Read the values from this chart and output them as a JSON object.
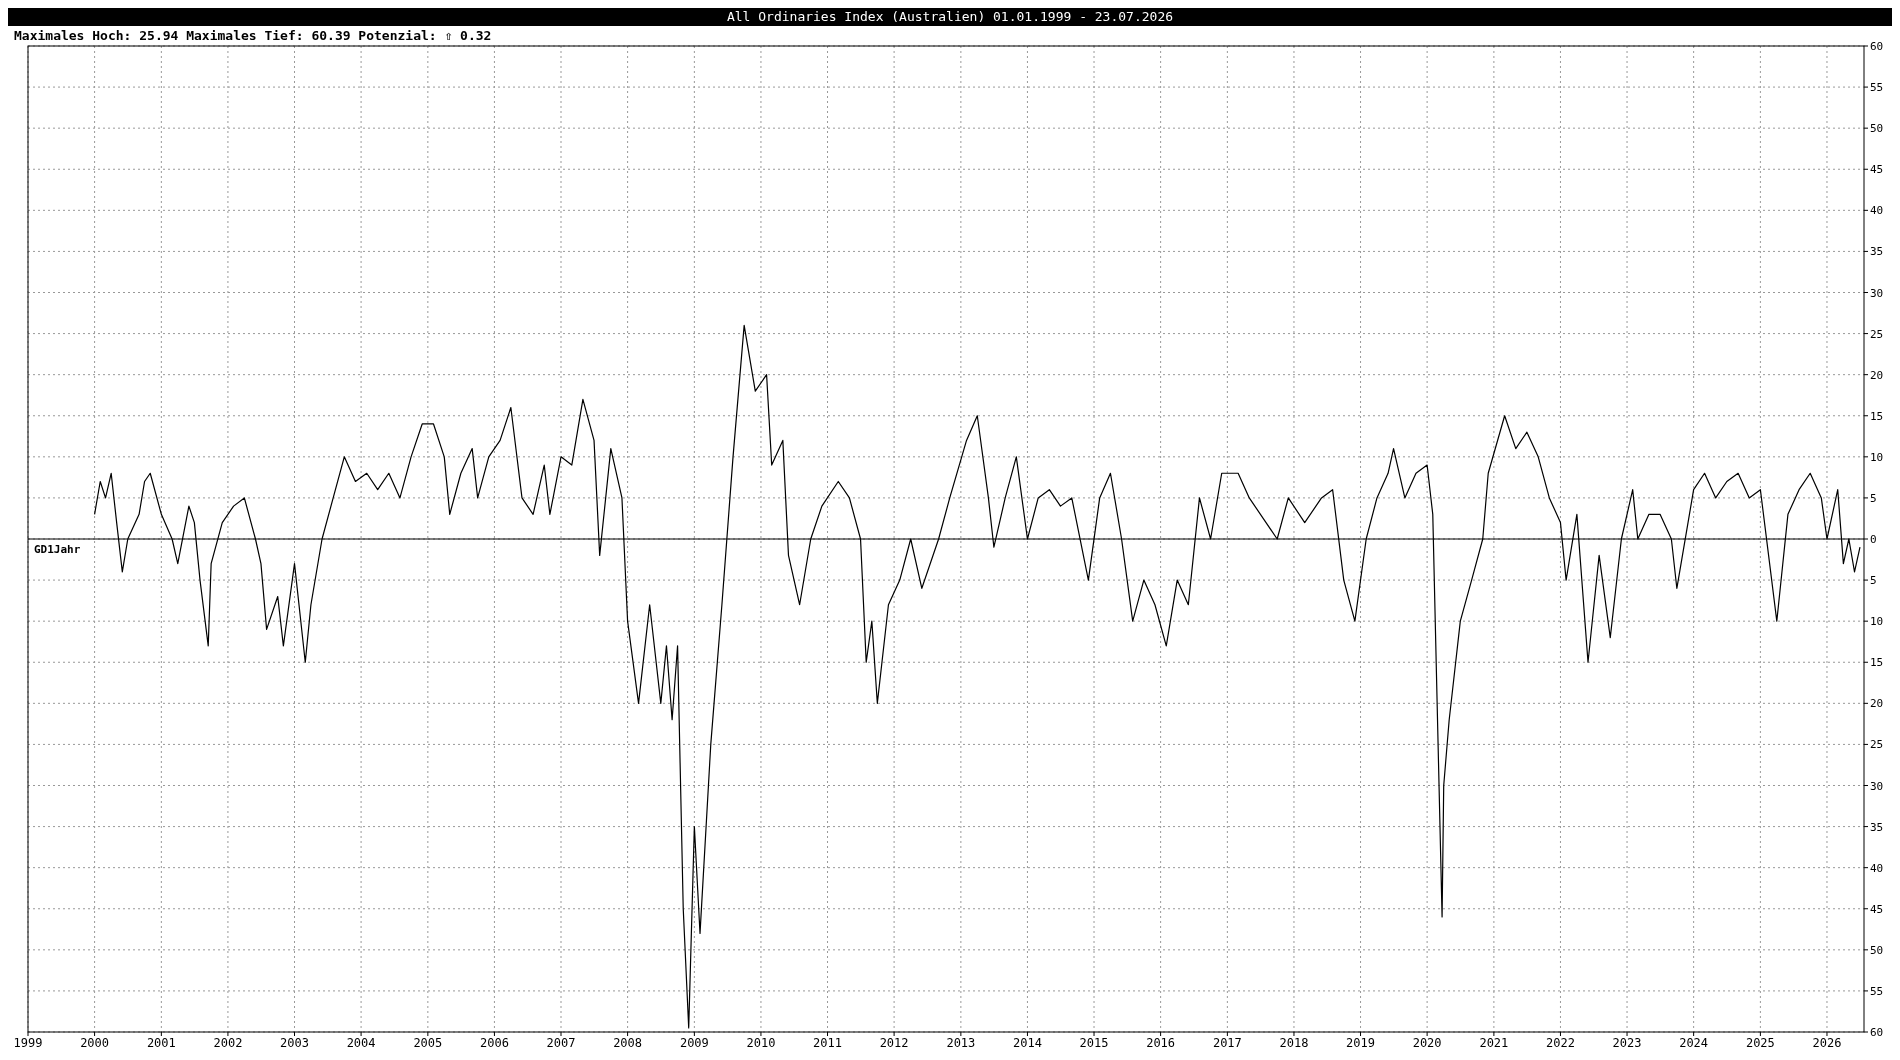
{
  "chart_data": {
    "type": "line",
    "title": "All Ordinaries Index (Australien) 01.01.1999 - 23.07.2026",
    "subtitle": "Maximales Hoch: 25.94  Maximales Tief: 60.39  Potenzial: ⇧ 0.32",
    "xlim": [
      "1999-01-01",
      "2026-07-23"
    ],
    "xticks": [
      "1999",
      "2000",
      "2001",
      "2002",
      "2003",
      "2004",
      "2005",
      "2006",
      "2007",
      "2008",
      "2009",
      "2010",
      "2011",
      "2012",
      "2013",
      "2014",
      "2015",
      "2016",
      "2017",
      "2018",
      "2019",
      "2020",
      "2021",
      "2022",
      "2023",
      "2024",
      "2025",
      "2026"
    ],
    "ylim": [
      -60,
      60
    ],
    "yticks": [
      {
        "value": -60,
        "label": "60"
      },
      {
        "value": -55,
        "label": "55"
      },
      {
        "value": -50,
        "label": "50"
      },
      {
        "value": -45,
        "label": "45"
      },
      {
        "value": -40,
        "label": "40"
      },
      {
        "value": -35,
        "label": "35"
      },
      {
        "value": -30,
        "label": "30"
      },
      {
        "value": -25,
        "label": "25"
      },
      {
        "value": -20,
        "label": "20"
      },
      {
        "value": -15,
        "label": "15"
      },
      {
        "value": -10,
        "label": "10"
      },
      {
        "value": -5,
        "label": "5"
      },
      0,
      5,
      10,
      15,
      20,
      25,
      30,
      35,
      40,
      45,
      50,
      55,
      60
    ],
    "grid": true,
    "ref_lines": [
      {
        "axis": "y",
        "value": 0,
        "label": "GD1Jahr",
        "color": "#000000"
      }
    ],
    "x": [
      "2000-01",
      "2000-02",
      "2000-03",
      "2000-04",
      "2000-05",
      "2000-06",
      "2000-07",
      "2000-09",
      "2000-10",
      "2000-11",
      "2001-01",
      "2001-03",
      "2001-04",
      "2001-06",
      "2001-07",
      "2001-08",
      "2001-09-15",
      "2001-10",
      "2001-12",
      "2002-02",
      "2002-04",
      "2002-06",
      "2002-07",
      "2002-08",
      "2002-10",
      "2002-11",
      "2003-01",
      "2003-03",
      "2003-04",
      "2003-06",
      "2003-08",
      "2003-10",
      "2003-12",
      "2004-02",
      "2004-04",
      "2004-06",
      "2004-08",
      "2004-10",
      "2004-12",
      "2005-02",
      "2005-04",
      "2005-05",
      "2005-07",
      "2005-09",
      "2005-10",
      "2005-12",
      "2006-02",
      "2006-04",
      "2006-06",
      "2006-08",
      "2006-10",
      "2006-11",
      "2007-01",
      "2007-03",
      "2007-05",
      "2007-07",
      "2007-08",
      "2007-10",
      "2007-12",
      "2008-01",
      "2008-03",
      "2008-05",
      "2008-07",
      "2008-08",
      "2008-09",
      "2008-10",
      "2008-11",
      "2008-12",
      "2009-01",
      "2009-02",
      "2009-04",
      "2009-06",
      "2009-08",
      "2009-10",
      "2009-12",
      "2010-02",
      "2010-03",
      "2010-05",
      "2010-06",
      "2010-08",
      "2010-10",
      "2010-12",
      "2011-03",
      "2011-05",
      "2011-07",
      "2011-08",
      "2011-09",
      "2011-10",
      "2011-12",
      "2012-02",
      "2012-04",
      "2012-06",
      "2012-09",
      "2012-11",
      "2013-02",
      "2013-04",
      "2013-06",
      "2013-07",
      "2013-09",
      "2013-11",
      "2014-01",
      "2014-03",
      "2014-05",
      "2014-07",
      "2014-09",
      "2014-12",
      "2015-02",
      "2015-04",
      "2015-06",
      "2015-08",
      "2015-10",
      "2015-12",
      "2016-02",
      "2016-04",
      "2016-06",
      "2016-08",
      "2016-10",
      "2016-12",
      "2017-03",
      "2017-05",
      "2017-08",
      "2017-10",
      "2017-12",
      "2018-03",
      "2018-06",
      "2018-08",
      "2018-10",
      "2018-12",
      "2019-02",
      "2019-04",
      "2019-06",
      "2019-07",
      "2019-09",
      "2019-11",
      "2020-01",
      "2020-02",
      "2020-03-23",
      "2020-04",
      "2020-05",
      "2020-07",
      "2020-09",
      "2020-11",
      "2020-12",
      "2021-03",
      "2021-05",
      "2021-07",
      "2021-09",
      "2021-11",
      "2022-01",
      "2022-02",
      "2022-04",
      "2022-06",
      "2022-08",
      "2022-10",
      "2022-12",
      "2023-02",
      "2023-03",
      "2023-05",
      "2023-07",
      "2023-09",
      "2023-10",
      "2024-01",
      "2024-03",
      "2024-05",
      "2024-07",
      "2024-09",
      "2024-11",
      "2025-01",
      "2025-04",
      "2025-06",
      "2025-08",
      "2025-10",
      "2025-12",
      "2026-01",
      "2026-03",
      "2026-04",
      "2026-05",
      "2026-06",
      "2026-07"
    ],
    "series": [
      {
        "color": "#000000",
        "values": [
          3,
          7,
          5,
          8,
          2,
          -4,
          0,
          3,
          7,
          8,
          3,
          0,
          -3,
          4,
          2,
          -5,
          -13,
          -3,
          2,
          4,
          5,
          0,
          -3,
          -11,
          -7,
          -13,
          -3,
          -15,
          -8,
          0,
          5,
          10,
          7,
          8,
          6,
          8,
          5,
          10,
          14,
          14,
          10,
          3,
          8,
          11,
          5,
          10,
          12,
          16,
          5,
          3,
          9,
          3,
          10,
          9,
          17,
          12,
          -2,
          11,
          5,
          -10,
          -20,
          -8,
          -20,
          -13,
          -22,
          -13,
          -45,
          -59.5,
          -35,
          -48,
          -25,
          -8,
          10,
          26,
          18,
          20,
          9,
          12,
          -2,
          -8,
          0,
          4,
          7,
          5,
          0,
          -15,
          -10,
          -20,
          -8,
          -5,
          0,
          -6,
          0,
          5,
          12,
          15,
          5,
          -1,
          5,
          10,
          0,
          5,
          6,
          4,
          5,
          -5,
          5,
          8,
          0,
          -10,
          -5,
          -8,
          -13,
          -5,
          -8,
          5,
          0,
          8,
          8,
          5,
          2,
          0,
          5,
          2,
          5,
          6,
          -5,
          -10,
          0,
          5,
          8,
          11,
          5,
          8,
          9,
          3,
          -46,
          -30,
          -22,
          -10,
          -5,
          0,
          8,
          15,
          11,
          13,
          10,
          5,
          2,
          -5,
          3,
          -15,
          -2,
          -12,
          0,
          6,
          0,
          3,
          3,
          0,
          -6,
          6,
          8,
          5,
          7,
          8,
          5,
          6,
          -10,
          3,
          6,
          8,
          5,
          0,
          6,
          -3,
          0,
          -4,
          -1
        ]
      }
    ]
  }
}
